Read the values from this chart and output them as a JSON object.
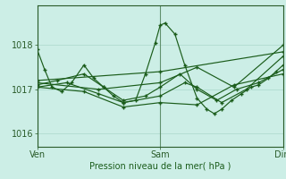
{
  "title": "",
  "xlabel": "Pression niveau de la mer( hPa )",
  "ylabel": "",
  "bg_color": "#cceee6",
  "line_color": "#1a5c1a",
  "grid_color": "#aad8cc",
  "tick_color": "#2a5c2a",
  "label_color": "#1a5c1a",
  "ylim": [
    1015.7,
    1018.9
  ],
  "xlim": [
    0.0,
    1.0
  ],
  "xtick_positions": [
    0.0,
    0.5,
    1.0
  ],
  "xtick_labels": [
    "Ven",
    "Sam",
    "Dim"
  ],
  "ytick_positions": [
    1016,
    1017,
    1018
  ],
  "series1": [
    [
      0.0,
      1017.9
    ],
    [
      0.03,
      1017.45
    ],
    [
      0.06,
      1017.05
    ],
    [
      0.1,
      1016.95
    ],
    [
      0.14,
      1017.15
    ],
    [
      0.19,
      1017.55
    ],
    [
      0.23,
      1017.25
    ],
    [
      0.27,
      1017.05
    ],
    [
      0.31,
      1016.85
    ],
    [
      0.35,
      1016.7
    ],
    [
      0.4,
      1016.75
    ],
    [
      0.44,
      1017.35
    ],
    [
      0.48,
      1018.05
    ],
    [
      0.5,
      1018.45
    ],
    [
      0.52,
      1018.5
    ],
    [
      0.56,
      1018.25
    ],
    [
      0.6,
      1017.55
    ],
    [
      0.65,
      1016.8
    ],
    [
      0.69,
      1016.55
    ],
    [
      0.72,
      1016.45
    ],
    [
      0.75,
      1016.55
    ],
    [
      0.79,
      1016.75
    ],
    [
      0.83,
      1016.9
    ],
    [
      0.87,
      1017.05
    ],
    [
      0.9,
      1017.1
    ],
    [
      0.94,
      1017.25
    ],
    [
      0.97,
      1017.4
    ],
    [
      1.0,
      1017.55
    ]
  ],
  "series2": [
    [
      0.0,
      1017.1
    ],
    [
      0.08,
      1017.2
    ],
    [
      0.19,
      1017.35
    ],
    [
      0.27,
      1017.05
    ],
    [
      0.35,
      1016.75
    ],
    [
      0.44,
      1016.85
    ],
    [
      0.5,
      1017.05
    ],
    [
      0.58,
      1017.35
    ],
    [
      0.65,
      1017.0
    ],
    [
      0.73,
      1016.75
    ],
    [
      0.81,
      1017.0
    ],
    [
      0.9,
      1017.15
    ],
    [
      1.0,
      1017.45
    ]
  ],
  "series3": [
    [
      0.0,
      1017.05
    ],
    [
      0.12,
      1017.15
    ],
    [
      0.25,
      1016.9
    ],
    [
      0.35,
      1016.7
    ],
    [
      0.5,
      1016.85
    ],
    [
      0.6,
      1017.15
    ],
    [
      0.65,
      1017.05
    ],
    [
      0.75,
      1016.7
    ],
    [
      0.85,
      1017.0
    ],
    [
      1.0,
      1017.75
    ]
  ],
  "series4": [
    [
      0.0,
      1017.05
    ],
    [
      0.19,
      1016.95
    ],
    [
      0.35,
      1016.6
    ],
    [
      0.5,
      1016.7
    ],
    [
      0.65,
      1016.65
    ],
    [
      0.8,
      1017.1
    ],
    [
      1.0,
      1017.35
    ]
  ],
  "series5": [
    [
      0.0,
      1017.15
    ],
    [
      0.25,
      1017.0
    ],
    [
      0.5,
      1017.15
    ],
    [
      0.65,
      1017.5
    ],
    [
      0.8,
      1017.05
    ],
    [
      1.0,
      1018.0
    ]
  ],
  "series6": [
    [
      0.0,
      1017.2
    ],
    [
      0.5,
      1017.4
    ],
    [
      1.0,
      1017.85
    ]
  ]
}
